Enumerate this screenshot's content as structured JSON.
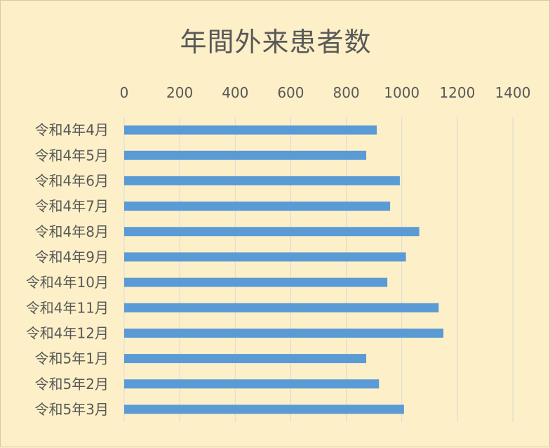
{
  "chart_data": {
    "type": "bar",
    "orientation": "horizontal",
    "title": "年間外来患者数",
    "categories": [
      "令和4年4月",
      "令和4年5月",
      "令和4年6月",
      "令和4年7月",
      "令和4年8月",
      "令和4年9月",
      "令和4年10月",
      "令和4年11月",
      "令和4年12月",
      "令和5年1月",
      "令和5年2月",
      "令和5年3月"
    ],
    "values": [
      910,
      872,
      993,
      958,
      1063,
      1015,
      948,
      1133,
      1150,
      872,
      918,
      1008
    ],
    "xlim": [
      0,
      1400
    ],
    "ticks": [
      "0",
      "200",
      "400",
      "600",
      "800",
      "1000",
      "1200",
      "1400"
    ],
    "xaxis_position": "top",
    "grid": true,
    "bar_color": "#5b9bd5",
    "background_color": "#fdf0c8"
  }
}
